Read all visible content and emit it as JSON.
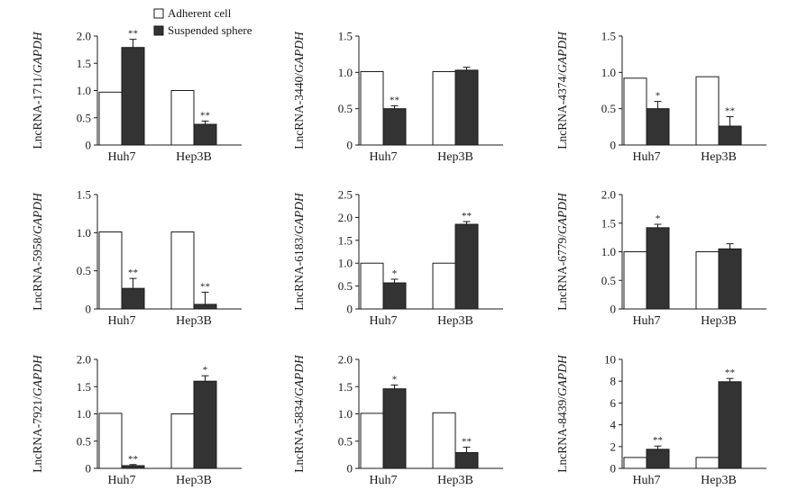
{
  "colors": {
    "adherent": "#ffffff",
    "suspended": "#333333",
    "stroke": "#1a1a1a"
  },
  "legend": {
    "items": [
      "Adherent cell",
      "Suspended sphere"
    ]
  },
  "chart_data": [
    {
      "type": "bar",
      "ylabel_prefix": "LncRNA-1711/",
      "ylabel_gene": "GAPDH",
      "categories": [
        "Huh7",
        "Hep3B"
      ],
      "ylim": [
        0,
        2.0
      ],
      "yticks": [
        "0",
        "0.5",
        "1.0",
        "1.5",
        "2.0"
      ],
      "ytick_values": [
        0,
        0.5,
        1.0,
        1.5,
        2.0
      ],
      "series": [
        {
          "name": "Adherent cell",
          "values": [
            0.97,
            1.0
          ],
          "errors": [
            0,
            0
          ],
          "sig": [
            "",
            ""
          ]
        },
        {
          "name": "Suspended sphere",
          "values": [
            1.79,
            0.38
          ],
          "errors": [
            0.15,
            0.06
          ],
          "sig": [
            "**",
            "**"
          ]
        }
      ]
    },
    {
      "type": "bar",
      "ylabel_prefix": "LncRNA-3440/",
      "ylabel_gene": "GAPDH",
      "categories": [
        "Huh7",
        "Hep3B"
      ],
      "ylim": [
        0,
        1.5
      ],
      "yticks": [
        "0",
        "0.5",
        "1.0",
        "1.5"
      ],
      "ytick_values": [
        0,
        0.5,
        1.0,
        1.5
      ],
      "series": [
        {
          "name": "Adherent cell",
          "values": [
            1.01,
            1.01
          ],
          "errors": [
            0,
            0
          ],
          "sig": [
            "",
            ""
          ]
        },
        {
          "name": "Suspended sphere",
          "values": [
            0.5,
            1.03
          ],
          "errors": [
            0.04,
            0.04
          ],
          "sig": [
            "**",
            ""
          ]
        }
      ]
    },
    {
      "type": "bar",
      "ylabel_prefix": "LncRNA-4374/",
      "ylabel_gene": "GAPDH",
      "categories": [
        "Huh7",
        "Hep3B"
      ],
      "ylim": [
        0,
        1.5
      ],
      "yticks": [
        "0",
        "0.5",
        "1.0",
        "1.5"
      ],
      "ytick_values": [
        0,
        0.5,
        1.0,
        1.5
      ],
      "series": [
        {
          "name": "Adherent cell",
          "values": [
            0.92,
            0.94
          ],
          "errors": [
            0,
            0
          ],
          "sig": [
            "",
            ""
          ]
        },
        {
          "name": "Suspended sphere",
          "values": [
            0.5,
            0.26
          ],
          "errors": [
            0.1,
            0.13
          ],
          "sig": [
            "*",
            "**"
          ]
        }
      ]
    },
    {
      "type": "bar",
      "ylabel_prefix": "LncRNA-5958/",
      "ylabel_gene": "GAPDH",
      "categories": [
        "Huh7",
        "Hep3B"
      ],
      "ylim": [
        0,
        1.5
      ],
      "yticks": [
        "0",
        "0.5",
        "1.0",
        "1.5"
      ],
      "ytick_values": [
        0,
        0.5,
        1.0,
        1.5
      ],
      "series": [
        {
          "name": "Adherent cell",
          "values": [
            1.01,
            1.01
          ],
          "errors": [
            0,
            0
          ],
          "sig": [
            "",
            ""
          ]
        },
        {
          "name": "Suspended sphere",
          "values": [
            0.27,
            0.06
          ],
          "errors": [
            0.13,
            0.16
          ],
          "sig": [
            "**",
            "**"
          ]
        }
      ]
    },
    {
      "type": "bar",
      "ylabel_prefix": "LncRNA-6183/",
      "ylabel_gene": "GAPDH",
      "categories": [
        "Huh7",
        "Hep3B"
      ],
      "ylim": [
        0,
        2.5
      ],
      "yticks": [
        "0",
        "0.5",
        "1.0",
        "1.5",
        "2.0",
        "2.5"
      ],
      "ytick_values": [
        0,
        0.5,
        1.0,
        1.5,
        2.0,
        2.5
      ],
      "series": [
        {
          "name": "Adherent cell",
          "values": [
            1.0,
            1.0
          ],
          "errors": [
            0,
            0
          ],
          "sig": [
            "",
            ""
          ]
        },
        {
          "name": "Suspended sphere",
          "values": [
            0.57,
            1.85
          ],
          "errors": [
            0.08,
            0.06
          ],
          "sig": [
            "*",
            "**"
          ]
        }
      ]
    },
    {
      "type": "bar",
      "ylabel_prefix": "LncRNA-6779/",
      "ylabel_gene": "GAPDH",
      "categories": [
        "Huh7",
        "Hep3B"
      ],
      "ylim": [
        0,
        2.0
      ],
      "yticks": [
        "0",
        "0.5",
        "1.0",
        "1.5",
        "2.0"
      ],
      "ytick_values": [
        0,
        0.5,
        1.0,
        1.5,
        2.0
      ],
      "series": [
        {
          "name": "Adherent cell",
          "values": [
            1.0,
            1.0
          ],
          "errors": [
            0,
            0
          ],
          "sig": [
            "",
            ""
          ]
        },
        {
          "name": "Suspended sphere",
          "values": [
            1.42,
            1.05
          ],
          "errors": [
            0.06,
            0.09
          ],
          "sig": [
            "*",
            ""
          ]
        }
      ]
    },
    {
      "type": "bar",
      "ylabel_prefix": "LncRNA-7921/",
      "ylabel_gene": "GAPDH",
      "categories": [
        "Huh7",
        "Hep3B"
      ],
      "ylim": [
        0,
        2.0
      ],
      "yticks": [
        "0",
        "0.5",
        "1.0",
        "1.5",
        "2.0"
      ],
      "ytick_values": [
        0,
        0.5,
        1.0,
        1.5,
        2.0
      ],
      "series": [
        {
          "name": "Adherent cell",
          "values": [
            1.01,
            1.0
          ],
          "errors": [
            0,
            0
          ],
          "sig": [
            "",
            ""
          ]
        },
        {
          "name": "Suspended sphere",
          "values": [
            0.05,
            1.6
          ],
          "errors": [
            0.02,
            0.1
          ],
          "sig": [
            "**",
            "*"
          ]
        }
      ]
    },
    {
      "type": "bar",
      "ylabel_prefix": "LncRNA-5834/",
      "ylabel_gene": "GAPDH",
      "categories": [
        "Huh7",
        "Hep3B"
      ],
      "ylim": [
        0,
        2.0
      ],
      "yticks": [
        "0",
        "0.5",
        "1.0",
        "1.5",
        "2.0"
      ],
      "ytick_values": [
        0,
        0.5,
        1.0,
        1.5,
        2.0
      ],
      "series": [
        {
          "name": "Adherent cell",
          "values": [
            1.01,
            1.02
          ],
          "errors": [
            0,
            0
          ],
          "sig": [
            "",
            ""
          ]
        },
        {
          "name": "Suspended sphere",
          "values": [
            1.46,
            0.29
          ],
          "errors": [
            0.07,
            0.1
          ],
          "sig": [
            "*",
            "**"
          ]
        }
      ]
    },
    {
      "type": "bar",
      "ylabel_prefix": "LncRNA-8439/",
      "ylabel_gene": "GAPDH",
      "categories": [
        "Huh7",
        "Hep3B"
      ],
      "ylim": [
        0,
        10
      ],
      "yticks": [
        "0",
        "2",
        "4",
        "6",
        "8",
        "10"
      ],
      "ytick_values": [
        0,
        2,
        4,
        6,
        8,
        10
      ],
      "series": [
        {
          "name": "Adherent cell",
          "values": [
            1.0,
            1.0
          ],
          "errors": [
            0,
            0
          ],
          "sig": [
            "",
            ""
          ]
        },
        {
          "name": "Suspended sphere",
          "values": [
            1.75,
            7.95
          ],
          "errors": [
            0.3,
            0.3
          ],
          "sig": [
            "**",
            "**"
          ]
        }
      ]
    }
  ]
}
